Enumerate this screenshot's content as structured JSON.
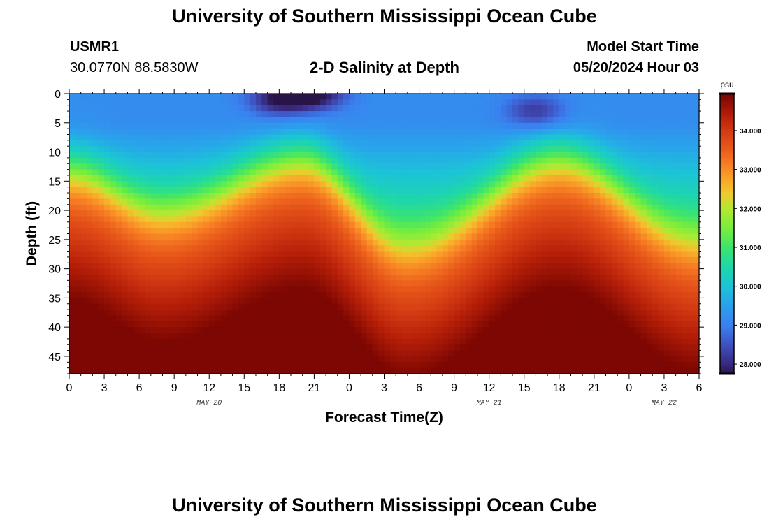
{
  "header": {
    "title": "University of Southern Mississippi Ocean Cube",
    "station_id": "USMR1",
    "station_coords": "30.0770N  88.5830W",
    "plot_title": "2-D Salinity at Depth",
    "start_label": "Model Start Time",
    "start_value": "05/20/2024 Hour 03"
  },
  "footer": {
    "title": "University of Southern Mississippi Ocean Cube"
  },
  "chart_data": {
    "type": "heatmap",
    "title": "2-D Salinity at Depth",
    "xlabel": "Forecast Time(Z)",
    "ylabel": "Depth (ft)",
    "x_tick_labels": [
      "0",
      "3",
      "6",
      "9",
      "12",
      "15",
      "18",
      "21",
      "0",
      "3",
      "6",
      "9",
      "12",
      "15",
      "18",
      "21",
      "0",
      "3",
      "6"
    ],
    "x_range_hours": [
      0,
      54
    ],
    "date_labels": [
      {
        "text": "MAY 20",
        "hour": 12
      },
      {
        "text": "MAY 21",
        "hour": 36
      },
      {
        "text": "MAY 22",
        "hour": 51
      }
    ],
    "y_ticks": [
      0,
      5,
      10,
      15,
      20,
      25,
      30,
      35,
      40,
      45
    ],
    "y_tick_labels": [
      "0",
      "5",
      "10",
      "15",
      "20",
      "25",
      "30",
      "35",
      "40",
      "45"
    ],
    "y_range_ft": [
      0,
      48
    ],
    "colorbar": {
      "unit": "psu",
      "range": [
        27.75,
        34.95
      ],
      "ticks": [
        28.0,
        29.0,
        30.0,
        31.0,
        32.0,
        33.0,
        34.0
      ],
      "tick_labels": [
        "28.000",
        "29.000",
        "30.000",
        "31.000",
        "32.000",
        "33.000",
        "34.000"
      ]
    },
    "surface_salinity_psu": 29.2,
    "halocline_depth_ft_by_hour": [
      {
        "hour": 0,
        "depth": 13
      },
      {
        "hour": 8,
        "depth": 20
      },
      {
        "hour": 20,
        "depth": 11
      },
      {
        "hour": 29,
        "depth": 26
      },
      {
        "hour": 42,
        "depth": 11
      },
      {
        "hour": 54,
        "depth": 25
      }
    ],
    "low_salinity_pockets": [
      {
        "hour": 18,
        "depth_ft": 1,
        "value": 27.8
      },
      {
        "hour": 21,
        "depth_ft": 0,
        "value": 27.6
      },
      {
        "hour": 40,
        "depth_ft": 3,
        "value": 28.2
      }
    ],
    "bottom_salinity_psu": 34.9
  }
}
